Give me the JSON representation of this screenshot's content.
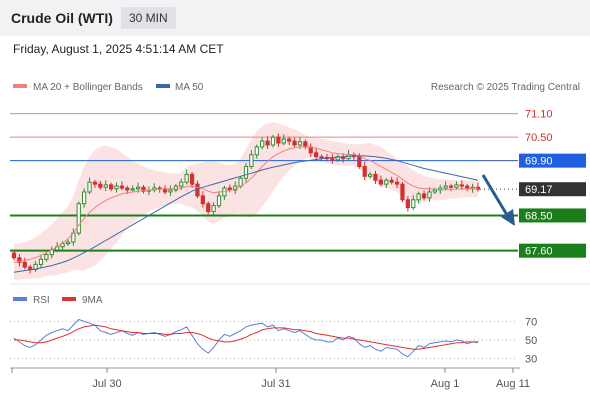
{
  "header": {
    "title": "Crude Oil (WTI)",
    "timeframe": "30 MIN"
  },
  "datetime": "Friday, August 1, 2025 4:51:14 AM CET",
  "legend": {
    "ma20": "MA 20 + Bollinger Bands",
    "ma50": "MA 50",
    "source": "Research © 2025 Trading Central"
  },
  "rsi_legend": {
    "rsi": "RSI",
    "ma": "9MA"
  },
  "colors": {
    "ma20": "#f08080",
    "ma50": "#3a6aa6",
    "rsi": "#5b7fd6",
    "rsi_ma": "#e03030",
    "up": "#2f8f2f",
    "down": "#d03030",
    "support": "#1a7f1a",
    "resistance": "#f08080",
    "pivot": "#1f5fe0",
    "price": "#333333",
    "arrow": "#2a5a90"
  },
  "chart_data": [
    {
      "type": "candlestick",
      "title": "Crude Oil (WTI)",
      "interval": "30 MIN",
      "y_range": [
        66.8,
        71.5
      ],
      "x_ticks": [
        "Jul 30",
        "Jul 31",
        "Aug 1",
        "Aug 11"
      ],
      "levels": [
        {
          "label": "71.10",
          "value": 71.1,
          "kind": "resistance"
        },
        {
          "label": "70.50",
          "value": 70.5,
          "kind": "resistance"
        },
        {
          "label": "69.90",
          "value": 69.9,
          "kind": "pivot"
        },
        {
          "label": "69.17",
          "value": 69.17,
          "kind": "last"
        },
        {
          "label": "68.50",
          "value": 68.5,
          "kind": "support"
        },
        {
          "label": "67.60",
          "value": 67.6,
          "kind": "support"
        }
      ],
      "closes": [
        67.42,
        67.3,
        67.18,
        67.12,
        67.25,
        67.38,
        67.5,
        67.62,
        67.7,
        67.78,
        67.82,
        68.05,
        68.8,
        69.1,
        69.35,
        69.3,
        69.22,
        69.28,
        69.18,
        69.25,
        69.2,
        69.15,
        69.18,
        69.22,
        69.12,
        69.15,
        69.2,
        69.18,
        69.1,
        69.15,
        69.25,
        69.35,
        69.55,
        69.3,
        69.0,
        68.8,
        68.6,
        68.75,
        69.0,
        69.2,
        69.15,
        69.25,
        69.45,
        69.75,
        70.05,
        70.25,
        70.4,
        70.3,
        70.5,
        70.35,
        70.45,
        70.4,
        70.3,
        70.38,
        70.25,
        70.1,
        70.0,
        69.98,
        69.95,
        69.92,
        70.0,
        69.95,
        70.05,
        70.0,
        69.75,
        69.5,
        69.55,
        69.4,
        69.3,
        69.4,
        69.35,
        69.3,
        68.9,
        68.7,
        68.9,
        69.05,
        68.95,
        69.1,
        69.15,
        69.2,
        69.25,
        69.22,
        69.28,
        69.25,
        69.18,
        69.22,
        69.17
      ],
      "series": [
        {
          "name": "MA 20 + Bollinger Bands",
          "values": [
            67.3,
            67.32,
            67.35,
            67.38,
            67.42,
            67.48,
            67.55,
            67.62,
            67.7,
            67.8,
            67.9,
            68.05,
            68.25,
            68.42,
            68.58,
            68.7,
            68.8,
            68.88,
            68.95,
            69.0,
            69.05,
            69.08,
            69.1,
            69.12,
            69.14,
            69.15,
            69.16,
            69.17,
            69.18,
            69.18,
            69.18,
            69.2,
            69.24,
            69.25,
            69.22,
            69.18,
            69.12,
            69.08,
            69.1,
            69.12,
            69.14,
            69.18,
            69.25,
            69.33,
            69.45,
            69.6,
            69.75,
            69.88,
            70.0,
            70.08,
            70.15,
            70.2,
            70.23,
            70.25,
            70.25,
            70.24,
            70.22,
            70.18,
            70.14,
            70.1,
            70.08,
            70.07,
            70.05,
            70.05,
            70.02,
            69.95,
            69.9,
            69.83,
            69.75,
            69.68,
            69.6,
            69.52,
            69.42,
            69.32,
            69.25,
            69.2,
            69.18,
            69.18,
            69.17,
            69.16,
            69.16,
            69.17,
            69.17,
            69.18,
            69.18,
            69.19,
            69.18
          ]
        },
        {
          "name": "MA 50",
          "values": [
            67.05,
            67.07,
            67.09,
            67.11,
            67.13,
            67.16,
            67.19,
            67.22,
            67.26,
            67.3,
            67.35,
            67.41,
            67.48,
            67.55,
            67.62,
            67.7,
            67.78,
            67.86,
            67.94,
            68.02,
            68.1,
            68.18,
            68.26,
            68.34,
            68.42,
            68.5,
            68.58,
            68.66,
            68.74,
            68.82,
            68.9,
            68.98,
            69.05,
            69.12,
            69.18,
            69.22,
            69.26,
            69.3,
            69.34,
            69.38,
            69.42,
            69.46,
            69.5,
            69.54,
            69.58,
            69.62,
            69.66,
            69.7,
            69.73,
            69.76,
            69.79,
            69.82,
            69.85,
            69.87,
            69.89,
            69.91,
            69.93,
            69.95,
            69.97,
            69.98,
            69.99,
            70.0,
            70.01,
            70.02,
            70.02,
            70.02,
            70.01,
            70.0,
            69.98,
            69.96,
            69.93,
            69.9,
            69.86,
            69.82,
            69.78,
            69.74,
            69.7,
            69.67,
            69.64,
            69.61,
            69.58,
            69.55,
            69.52,
            69.49,
            69.46,
            69.43,
            69.4
          ]
        },
        {
          "name": "Bollinger upper",
          "values": [
            67.75,
            67.78,
            67.82,
            67.88,
            67.95,
            68.05,
            68.15,
            68.28,
            68.42,
            68.58,
            68.75,
            69.0,
            69.4,
            69.75,
            70.0,
            70.18,
            70.25,
            70.28,
            70.25,
            70.2,
            70.1,
            70.0,
            69.9,
            69.82,
            69.75,
            69.7,
            69.66,
            69.63,
            69.6,
            69.58,
            69.56,
            69.6,
            69.75,
            69.8,
            69.82,
            69.85,
            69.9,
            69.88,
            69.85,
            69.8,
            69.78,
            69.82,
            69.95,
            70.2,
            70.45,
            70.65,
            70.78,
            70.85,
            70.88,
            70.85,
            70.8,
            70.75,
            70.7,
            70.62,
            70.55,
            70.5,
            70.48,
            70.46,
            70.44,
            70.4,
            70.38,
            70.35,
            70.33,
            70.32,
            70.32,
            70.34,
            70.35,
            70.3,
            70.25,
            70.15,
            70.05,
            69.95,
            69.85,
            69.75,
            69.65,
            69.58,
            69.52,
            69.48,
            69.45,
            69.43,
            69.42,
            69.41,
            69.4,
            69.4,
            69.4,
            69.4,
            69.4
          ]
        },
        {
          "name": "Bollinger lower",
          "values": [
            66.85,
            66.86,
            66.88,
            66.88,
            66.89,
            66.91,
            66.95,
            66.96,
            66.98,
            67.02,
            67.05,
            67.1,
            67.1,
            67.09,
            67.16,
            67.22,
            67.35,
            67.48,
            67.65,
            67.8,
            68.0,
            68.16,
            68.3,
            68.42,
            68.53,
            68.6,
            68.66,
            68.71,
            68.76,
            68.78,
            68.8,
            68.8,
            68.73,
            68.7,
            68.62,
            68.51,
            68.34,
            68.28,
            68.35,
            68.44,
            68.5,
            68.54,
            68.55,
            68.46,
            68.45,
            68.55,
            68.72,
            68.91,
            69.12,
            69.31,
            69.5,
            69.65,
            69.76,
            69.88,
            69.95,
            69.98,
            69.96,
            69.9,
            69.84,
            69.8,
            69.78,
            69.79,
            69.77,
            69.78,
            69.72,
            69.56,
            69.45,
            69.36,
            69.25,
            69.21,
            69.15,
            69.09,
            68.99,
            68.89,
            68.85,
            68.82,
            68.84,
            68.88,
            68.89,
            68.89,
            68.9,
            68.93,
            68.94,
            68.96,
            68.96,
            68.98,
            68.96
          ]
        }
      ]
    },
    {
      "type": "line",
      "title": "RSI",
      "y_range": [
        20,
        80
      ],
      "y_ticks": [
        70,
        50,
        30
      ],
      "series": [
        {
          "name": "RSI",
          "values": [
            52,
            48,
            44,
            42,
            45,
            50,
            55,
            58,
            60,
            62,
            60,
            66,
            72,
            70,
            68,
            66,
            60,
            58,
            56,
            58,
            60,
            57,
            55,
            58,
            56,
            57,
            58,
            56,
            54,
            56,
            59,
            61,
            64,
            55,
            46,
            40,
            36,
            42,
            50,
            56,
            54,
            57,
            60,
            64,
            66,
            67,
            68,
            64,
            66,
            60,
            62,
            60,
            58,
            60,
            56,
            52,
            50,
            50,
            48,
            48,
            52,
            50,
            54,
            52,
            46,
            42,
            44,
            40,
            38,
            42,
            41,
            40,
            35,
            32,
            38,
            44,
            42,
            46,
            47,
            48,
            49,
            48,
            50,
            49,
            46,
            48,
            47
          ]
        },
        {
          "name": "9MA",
          "values": [
            50,
            50,
            49,
            48,
            47,
            47,
            48,
            50,
            52,
            54,
            56,
            59,
            62,
            64,
            65,
            66,
            65,
            64,
            62,
            61,
            60,
            59,
            58,
            58,
            57,
            57,
            57,
            57,
            56,
            56,
            57,
            57,
            58,
            58,
            57,
            55,
            52,
            50,
            49,
            48,
            48,
            49,
            51,
            53,
            56,
            58,
            61,
            62,
            63,
            63,
            63,
            62,
            61,
            61,
            60,
            59,
            57,
            56,
            55,
            54,
            53,
            52,
            52,
            51,
            50,
            49,
            48,
            47,
            46,
            45,
            44,
            43,
            42,
            41,
            40,
            40,
            41,
            42,
            43,
            44,
            45,
            46,
            47,
            47,
            48,
            48,
            48
          ]
        }
      ]
    }
  ]
}
